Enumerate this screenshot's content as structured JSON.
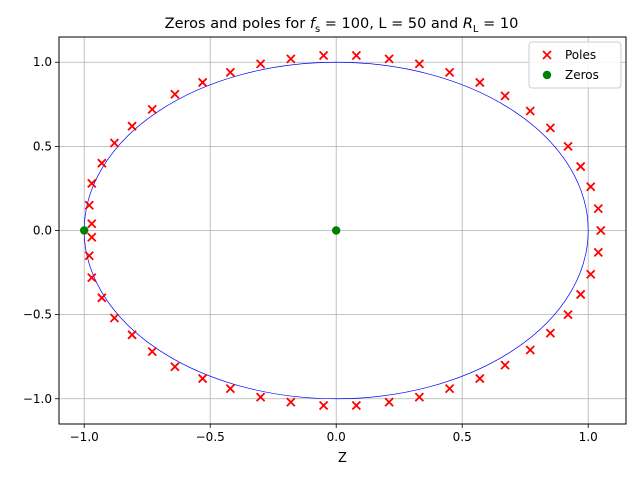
{
  "chart_data": {
    "type": "scatter",
    "title": {
      "prefix": "Zeros and poles for ",
      "fs_symbol": "f",
      "fs_sub": "s",
      "fs_rest": " = 100, L = 50 and ",
      "rl_symbol": "R",
      "rl_sub": "L",
      "rl_rest": " = 10"
    },
    "xlabel": "Z",
    "ylabel": "",
    "xlim": [
      -1.1,
      1.15
    ],
    "ylim": [
      -1.15,
      1.15
    ],
    "xticks": [
      -1.0,
      -0.5,
      0.0,
      0.5,
      1.0
    ],
    "xtick_labels": [
      "−1.0",
      "−0.5",
      "0.0",
      "0.5",
      "1.0"
    ],
    "yticks": [
      -1.0,
      -0.5,
      0.0,
      0.5,
      1.0
    ],
    "ytick_labels": [
      "−1.0",
      "−0.5",
      "0.0",
      "0.5",
      "1.0"
    ],
    "grid": true,
    "legend": "top-right",
    "unit_circle": {
      "radius": 1.0,
      "color": "#0000ff"
    },
    "series": [
      {
        "name": "Poles",
        "marker": "x",
        "color": "#ff0000",
        "points": [
          [
            -0.98,
            0.15
          ],
          [
            -0.97,
            0.28
          ],
          [
            -0.93,
            0.4
          ],
          [
            -0.88,
            0.52
          ],
          [
            -0.81,
            0.62
          ],
          [
            -0.73,
            0.72
          ],
          [
            -0.64,
            0.81
          ],
          [
            -0.53,
            0.88
          ],
          [
            -0.42,
            0.94
          ],
          [
            -0.3,
            0.99
          ],
          [
            -0.18,
            1.02
          ],
          [
            -0.05,
            1.04
          ],
          [
            0.08,
            1.04
          ],
          [
            0.21,
            1.02
          ],
          [
            0.33,
            0.99
          ],
          [
            0.45,
            0.94
          ],
          [
            0.57,
            0.88
          ],
          [
            0.67,
            0.8
          ],
          [
            0.77,
            0.71
          ],
          [
            0.85,
            0.61
          ],
          [
            0.92,
            0.5
          ],
          [
            0.97,
            0.38
          ],
          [
            1.01,
            0.26
          ],
          [
            1.04,
            0.13
          ],
          [
            1.05,
            0.0
          ],
          [
            1.04,
            -0.13
          ],
          [
            1.01,
            -0.26
          ],
          [
            0.97,
            -0.38
          ],
          [
            0.92,
            -0.5
          ],
          [
            0.85,
            -0.61
          ],
          [
            0.77,
            -0.71
          ],
          [
            0.67,
            -0.8
          ],
          [
            0.57,
            -0.88
          ],
          [
            0.45,
            -0.94
          ],
          [
            0.33,
            -0.99
          ],
          [
            0.21,
            -1.02
          ],
          [
            0.08,
            -1.04
          ],
          [
            -0.05,
            -1.04
          ],
          [
            -0.18,
            -1.02
          ],
          [
            -0.3,
            -0.99
          ],
          [
            -0.42,
            -0.94
          ],
          [
            -0.53,
            -0.88
          ],
          [
            -0.64,
            -0.81
          ],
          [
            -0.73,
            -0.72
          ],
          [
            -0.81,
            -0.62
          ],
          [
            -0.88,
            -0.52
          ],
          [
            -0.93,
            -0.4
          ],
          [
            -0.97,
            -0.28
          ],
          [
            -0.98,
            -0.15
          ],
          [
            -0.97,
            0.04
          ],
          [
            -0.97,
            -0.04
          ]
        ]
      },
      {
        "name": "Zeros",
        "marker": "o",
        "color": "#008000",
        "points": [
          [
            -1.0,
            0.0
          ],
          [
            0.0,
            0.0
          ]
        ]
      }
    ]
  }
}
